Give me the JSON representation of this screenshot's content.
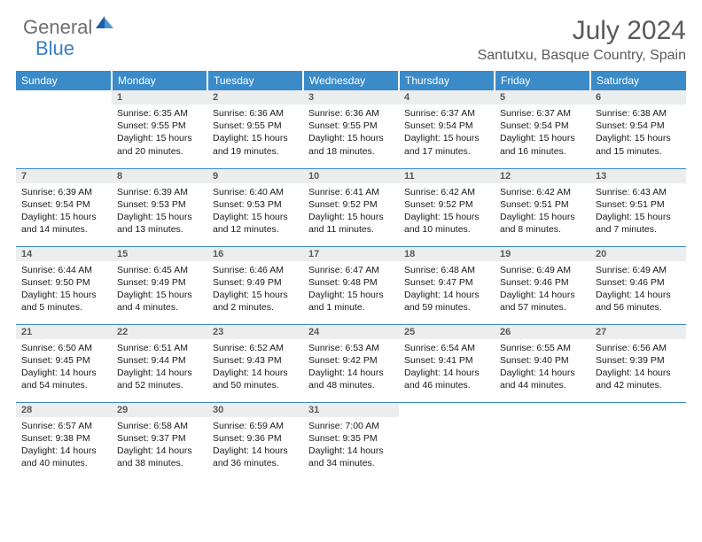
{
  "brand": {
    "general": "General",
    "blue": "Blue"
  },
  "colors": {
    "header_bg": "#3b8bc9",
    "header_text": "#ffffff",
    "daynum_bg": "#eceded",
    "border": "#3b8bc9",
    "logo_gray": "#6e6e6e",
    "logo_blue": "#3b7fc4",
    "title_gray": "#5a5a5a"
  },
  "title": "July 2024",
  "location": "Santutxu, Basque Country, Spain",
  "weekdays": [
    "Sunday",
    "Monday",
    "Tuesday",
    "Wednesday",
    "Thursday",
    "Friday",
    "Saturday"
  ],
  "weeks": [
    [
      {},
      {
        "d": "1",
        "sr": "Sunrise: 6:35 AM",
        "ss": "Sunset: 9:55 PM",
        "dl1": "Daylight: 15 hours",
        "dl2": "and 20 minutes."
      },
      {
        "d": "2",
        "sr": "Sunrise: 6:36 AM",
        "ss": "Sunset: 9:55 PM",
        "dl1": "Daylight: 15 hours",
        "dl2": "and 19 minutes."
      },
      {
        "d": "3",
        "sr": "Sunrise: 6:36 AM",
        "ss": "Sunset: 9:55 PM",
        "dl1": "Daylight: 15 hours",
        "dl2": "and 18 minutes."
      },
      {
        "d": "4",
        "sr": "Sunrise: 6:37 AM",
        "ss": "Sunset: 9:54 PM",
        "dl1": "Daylight: 15 hours",
        "dl2": "and 17 minutes."
      },
      {
        "d": "5",
        "sr": "Sunrise: 6:37 AM",
        "ss": "Sunset: 9:54 PM",
        "dl1": "Daylight: 15 hours",
        "dl2": "and 16 minutes."
      },
      {
        "d": "6",
        "sr": "Sunrise: 6:38 AM",
        "ss": "Sunset: 9:54 PM",
        "dl1": "Daylight: 15 hours",
        "dl2": "and 15 minutes."
      }
    ],
    [
      {
        "d": "7",
        "sr": "Sunrise: 6:39 AM",
        "ss": "Sunset: 9:54 PM",
        "dl1": "Daylight: 15 hours",
        "dl2": "and 14 minutes."
      },
      {
        "d": "8",
        "sr": "Sunrise: 6:39 AM",
        "ss": "Sunset: 9:53 PM",
        "dl1": "Daylight: 15 hours",
        "dl2": "and 13 minutes."
      },
      {
        "d": "9",
        "sr": "Sunrise: 6:40 AM",
        "ss": "Sunset: 9:53 PM",
        "dl1": "Daylight: 15 hours",
        "dl2": "and 12 minutes."
      },
      {
        "d": "10",
        "sr": "Sunrise: 6:41 AM",
        "ss": "Sunset: 9:52 PM",
        "dl1": "Daylight: 15 hours",
        "dl2": "and 11 minutes."
      },
      {
        "d": "11",
        "sr": "Sunrise: 6:42 AM",
        "ss": "Sunset: 9:52 PM",
        "dl1": "Daylight: 15 hours",
        "dl2": "and 10 minutes."
      },
      {
        "d": "12",
        "sr": "Sunrise: 6:42 AM",
        "ss": "Sunset: 9:51 PM",
        "dl1": "Daylight: 15 hours",
        "dl2": "and 8 minutes."
      },
      {
        "d": "13",
        "sr": "Sunrise: 6:43 AM",
        "ss": "Sunset: 9:51 PM",
        "dl1": "Daylight: 15 hours",
        "dl2": "and 7 minutes."
      }
    ],
    [
      {
        "d": "14",
        "sr": "Sunrise: 6:44 AM",
        "ss": "Sunset: 9:50 PM",
        "dl1": "Daylight: 15 hours",
        "dl2": "and 5 minutes."
      },
      {
        "d": "15",
        "sr": "Sunrise: 6:45 AM",
        "ss": "Sunset: 9:49 PM",
        "dl1": "Daylight: 15 hours",
        "dl2": "and 4 minutes."
      },
      {
        "d": "16",
        "sr": "Sunrise: 6:46 AM",
        "ss": "Sunset: 9:49 PM",
        "dl1": "Daylight: 15 hours",
        "dl2": "and 2 minutes."
      },
      {
        "d": "17",
        "sr": "Sunrise: 6:47 AM",
        "ss": "Sunset: 9:48 PM",
        "dl1": "Daylight: 15 hours",
        "dl2": "and 1 minute."
      },
      {
        "d": "18",
        "sr": "Sunrise: 6:48 AM",
        "ss": "Sunset: 9:47 PM",
        "dl1": "Daylight: 14 hours",
        "dl2": "and 59 minutes."
      },
      {
        "d": "19",
        "sr": "Sunrise: 6:49 AM",
        "ss": "Sunset: 9:46 PM",
        "dl1": "Daylight: 14 hours",
        "dl2": "and 57 minutes."
      },
      {
        "d": "20",
        "sr": "Sunrise: 6:49 AM",
        "ss": "Sunset: 9:46 PM",
        "dl1": "Daylight: 14 hours",
        "dl2": "and 56 minutes."
      }
    ],
    [
      {
        "d": "21",
        "sr": "Sunrise: 6:50 AM",
        "ss": "Sunset: 9:45 PM",
        "dl1": "Daylight: 14 hours",
        "dl2": "and 54 minutes."
      },
      {
        "d": "22",
        "sr": "Sunrise: 6:51 AM",
        "ss": "Sunset: 9:44 PM",
        "dl1": "Daylight: 14 hours",
        "dl2": "and 52 minutes."
      },
      {
        "d": "23",
        "sr": "Sunrise: 6:52 AM",
        "ss": "Sunset: 9:43 PM",
        "dl1": "Daylight: 14 hours",
        "dl2": "and 50 minutes."
      },
      {
        "d": "24",
        "sr": "Sunrise: 6:53 AM",
        "ss": "Sunset: 9:42 PM",
        "dl1": "Daylight: 14 hours",
        "dl2": "and 48 minutes."
      },
      {
        "d": "25",
        "sr": "Sunrise: 6:54 AM",
        "ss": "Sunset: 9:41 PM",
        "dl1": "Daylight: 14 hours",
        "dl2": "and 46 minutes."
      },
      {
        "d": "26",
        "sr": "Sunrise: 6:55 AM",
        "ss": "Sunset: 9:40 PM",
        "dl1": "Daylight: 14 hours",
        "dl2": "and 44 minutes."
      },
      {
        "d": "27",
        "sr": "Sunrise: 6:56 AM",
        "ss": "Sunset: 9:39 PM",
        "dl1": "Daylight: 14 hours",
        "dl2": "and 42 minutes."
      }
    ],
    [
      {
        "d": "28",
        "sr": "Sunrise: 6:57 AM",
        "ss": "Sunset: 9:38 PM",
        "dl1": "Daylight: 14 hours",
        "dl2": "and 40 minutes."
      },
      {
        "d": "29",
        "sr": "Sunrise: 6:58 AM",
        "ss": "Sunset: 9:37 PM",
        "dl1": "Daylight: 14 hours",
        "dl2": "and 38 minutes."
      },
      {
        "d": "30",
        "sr": "Sunrise: 6:59 AM",
        "ss": "Sunset: 9:36 PM",
        "dl1": "Daylight: 14 hours",
        "dl2": "and 36 minutes."
      },
      {
        "d": "31",
        "sr": "Sunrise: 7:00 AM",
        "ss": "Sunset: 9:35 PM",
        "dl1": "Daylight: 14 hours",
        "dl2": "and 34 minutes."
      },
      {},
      {},
      {}
    ]
  ]
}
